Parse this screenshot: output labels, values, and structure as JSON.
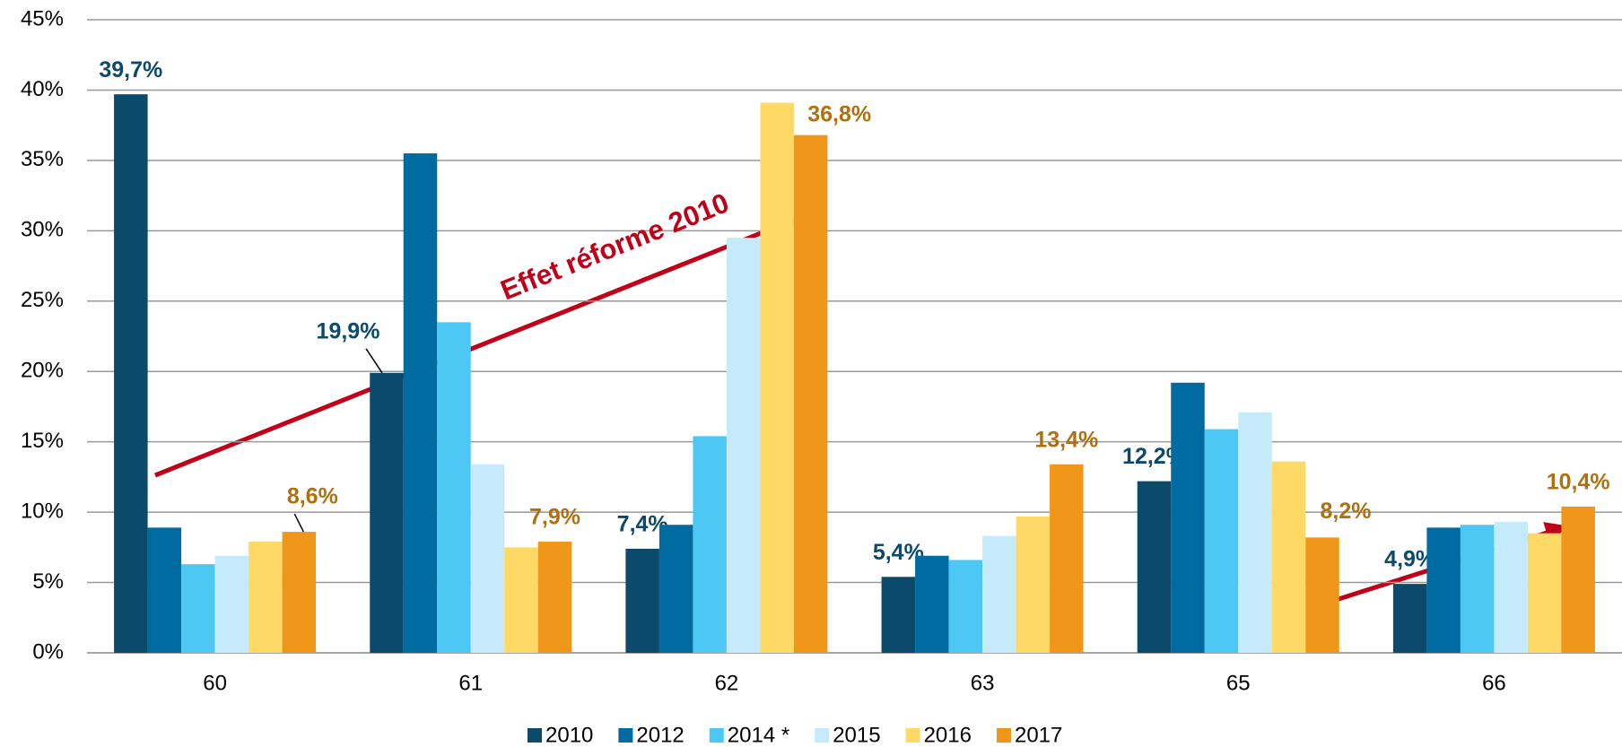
{
  "chart_data": {
    "type": "bar",
    "categories": [
      "60",
      "61",
      "62",
      "63",
      "65",
      "66"
    ],
    "series": [
      {
        "name": "2010",
        "color": "#0b4a6a",
        "values": [
          39.7,
          19.9,
          7.4,
          5.4,
          12.2,
          4.9
        ],
        "value_labels": [
          "39,7%",
          "19,9%",
          "7,4%",
          "5,4%",
          "12,2%",
          "4,9%"
        ],
        "label_color": "#0b4a6a"
      },
      {
        "name": "2012",
        "color": "#006ba0",
        "values": [
          8.9,
          35.5,
          9.1,
          6.9,
          19.2,
          8.9
        ]
      },
      {
        "name": "2014 *",
        "color": "#4dc8f5",
        "values": [
          6.3,
          23.5,
          15.4,
          6.6,
          15.9,
          9.1
        ]
      },
      {
        "name": "2015",
        "color": "#c5ebfa",
        "values": [
          6.9,
          13.4,
          29.5,
          8.3,
          17.1,
          9.3
        ]
      },
      {
        "name": "2016",
        "color": "#ffd966",
        "values": [
          7.9,
          7.5,
          39.1,
          9.7,
          13.6,
          8.5
        ]
      },
      {
        "name": "2017",
        "color": "#f0961a",
        "values": [
          8.6,
          7.9,
          36.8,
          13.4,
          8.2,
          10.4
        ],
        "value_labels": [
          "8,6%",
          "7,9%",
          "36,8%",
          "13,4%",
          "8,2%",
          "10,4%"
        ],
        "label_color": "#b07010"
      }
    ],
    "ylim": [
      0,
      45
    ],
    "yticks": [
      {
        "value": 0,
        "label": "0%"
      },
      {
        "value": 5,
        "label": "5%"
      },
      {
        "value": 10,
        "label": "10%"
      },
      {
        "value": 15,
        "label": "15%"
      },
      {
        "value": 20,
        "label": "20%"
      },
      {
        "value": 25,
        "label": "25%"
      },
      {
        "value": 30,
        "label": "30%"
      },
      {
        "value": 35,
        "label": "35%"
      },
      {
        "value": 40,
        "label": "40%"
      },
      {
        "value": 45,
        "label": "45%"
      }
    ],
    "grid": true,
    "legend": "bottom",
    "annotations": [
      {
        "text": "Effet réforme 2010",
        "color": "#c00018"
      }
    ]
  }
}
